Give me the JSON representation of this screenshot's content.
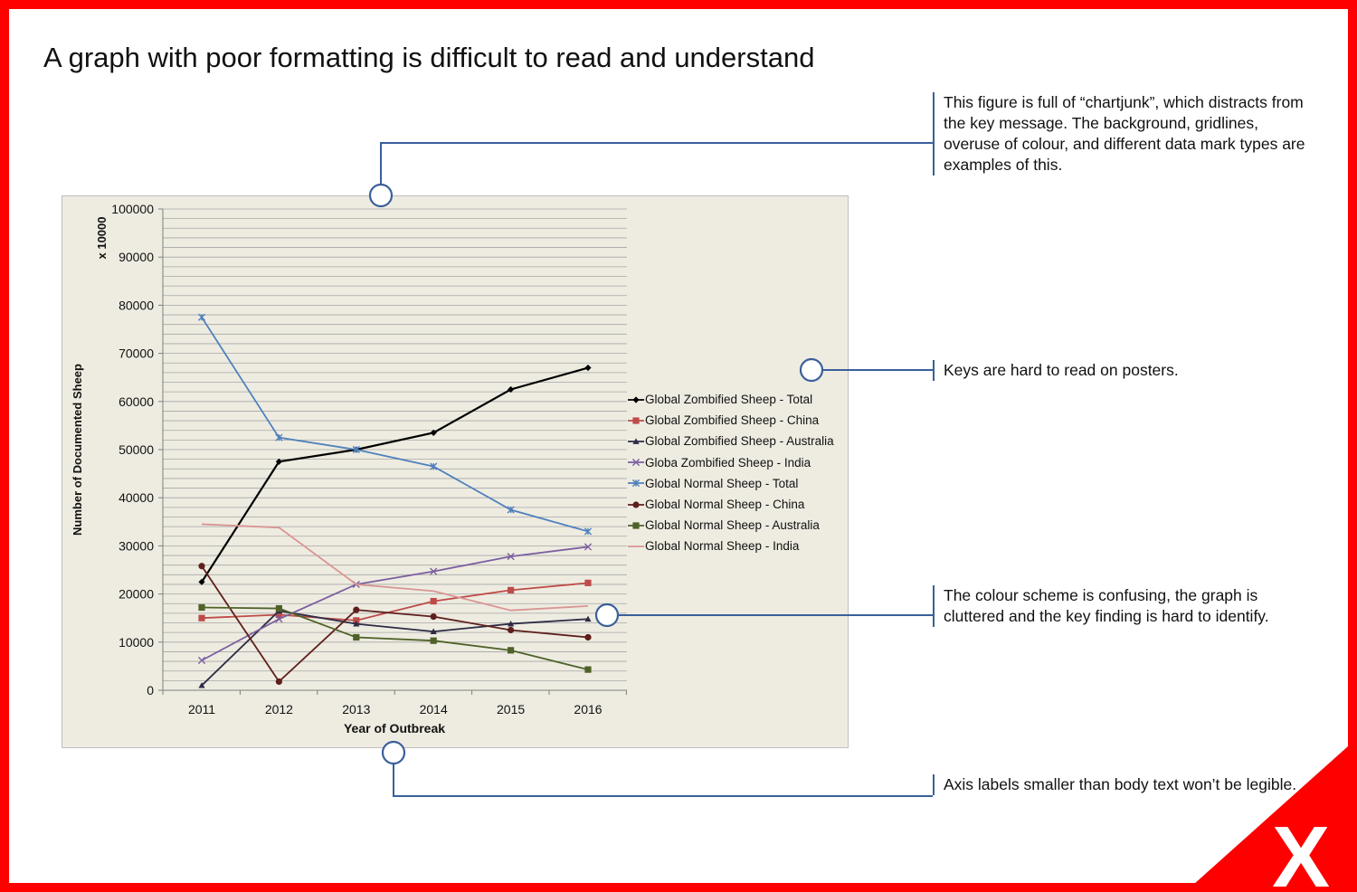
{
  "page": {
    "title": "A graph with poor formatting is difficult to read and understand",
    "accent_color": "#ff0000",
    "callout_color": "#3a5f9b"
  },
  "callouts": [
    {
      "text": "This figure is full of “chartjunk”, which distracts from the key message. The background, gridlines, overuse of colour, and different data mark types are examples of this."
    },
    {
      "text": "Keys are hard to read on posters."
    },
    {
      "text": "The colour scheme is confusing, the graph is cluttered and the key finding is hard to identify."
    },
    {
      "text": "Axis labels smaller than body text won’t be legible."
    }
  ],
  "corner_mark": "X",
  "chart_data": {
    "type": "line",
    "xlabel": "Year of Outbreak",
    "ylabel": "Number of Documented Sheep",
    "y_unit_label": "x 10000",
    "x": [
      2011,
      2012,
      2013,
      2014,
      2015,
      2016
    ],
    "ylim": [
      0,
      100000
    ],
    "yticks": [
      0,
      10000,
      20000,
      30000,
      40000,
      50000,
      60000,
      70000,
      80000,
      90000,
      100000
    ],
    "grid": true,
    "legend_position": "right",
    "background_color": "#eeece1",
    "series": [
      {
        "name": "Global Zombified Sheep - Total",
        "color": "#000000",
        "marker": "diamond",
        "values": [
          22500,
          47500,
          50000,
          53500,
          62500,
          67000
        ]
      },
      {
        "name": "Global Zombified Sheep - China",
        "color": "#be4b48",
        "marker": "square",
        "values": [
          15000,
          15700,
          14500,
          18500,
          20800,
          22300
        ]
      },
      {
        "name": "Global Zombified Sheep - Australia",
        "color": "#2e2b45",
        "marker": "triangle",
        "values": [
          1000,
          16500,
          13800,
          12200,
          13800,
          14800
        ]
      },
      {
        "name": "Globa Zombified Sheep - India",
        "color": "#7c5fa0",
        "marker": "x",
        "values": [
          6200,
          14800,
          22000,
          24700,
          27800,
          29800
        ]
      },
      {
        "name": "Global Normal Sheep - Total",
        "color": "#4f81bd",
        "marker": "star",
        "values": [
          77500,
          52500,
          50000,
          46500,
          37500,
          33000
        ]
      },
      {
        "name": "Global Normal Sheep - China",
        "color": "#5e1f1c",
        "marker": "circle",
        "values": [
          25800,
          1800,
          16700,
          15300,
          12500,
          11000
        ]
      },
      {
        "name": "Global Normal Sheep - Australia",
        "color": "#4f6228",
        "marker": "square",
        "values": [
          17200,
          17000,
          11000,
          10300,
          8300,
          4300
        ]
      },
      {
        "name": "Global Normal Sheep - India",
        "color": "#d99594",
        "marker": "none",
        "values": [
          34500,
          33800,
          22000,
          20600,
          16600,
          17500
        ]
      }
    ]
  }
}
